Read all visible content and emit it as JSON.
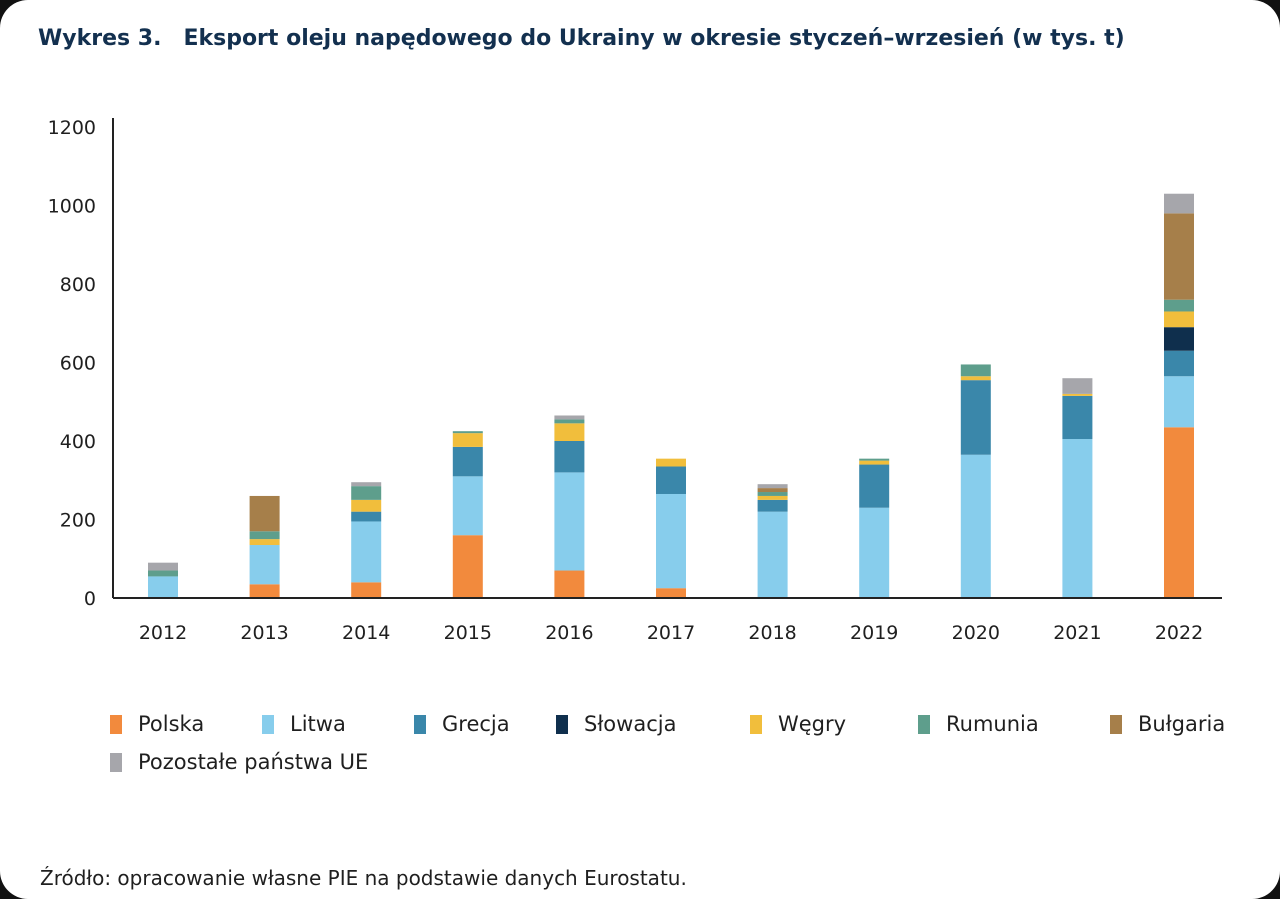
{
  "header": {
    "title_number": "Wykres 3.",
    "title_text": "Eksport oleju napędowego do Ukrainy w okresie styczeń–wrzesień (w tys. t)"
  },
  "source": "Źródło: opracowanie własne PIE na podstawie danych Eurostatu.",
  "chart_data": {
    "type": "bar",
    "stacked": true,
    "title": "Eksport oleju napędowego do Ukrainy w okresie styczeń–wrzesień (w tys. t)",
    "xlabel": "",
    "ylabel": "",
    "ylim": [
      0,
      1200
    ],
    "yticks": [
      0,
      200,
      400,
      600,
      800,
      1000,
      1200
    ],
    "grid": false,
    "legend_position": "bottom",
    "categories": [
      "2012",
      "2013",
      "2014",
      "2015",
      "2016",
      "2017",
      "2018",
      "2019",
      "2020",
      "2021",
      "2022"
    ],
    "series": [
      {
        "name": "Polska",
        "color": "#f28a3d",
        "values": [
          0,
          35,
          40,
          160,
          70,
          25,
          0,
          0,
          0,
          0,
          435
        ]
      },
      {
        "name": "Litwa",
        "color": "#87cdec",
        "values": [
          55,
          100,
          155,
          150,
          250,
          240,
          220,
          230,
          365,
          405,
          130
        ]
      },
      {
        "name": "Grecja",
        "color": "#3a87aa",
        "values": [
          0,
          0,
          25,
          75,
          80,
          70,
          30,
          110,
          190,
          110,
          65
        ]
      },
      {
        "name": "Słowacja",
        "color": "#0f2f4d",
        "values": [
          0,
          0,
          0,
          0,
          0,
          0,
          0,
          0,
          0,
          0,
          60
        ]
      },
      {
        "name": "Węgry",
        "color": "#f1be3c",
        "values": [
          0,
          15,
          30,
          35,
          45,
          20,
          10,
          10,
          10,
          5,
          40
        ]
      },
      {
        "name": "Rumunia",
        "color": "#5e9e8c",
        "values": [
          15,
          20,
          35,
          5,
          10,
          0,
          10,
          5,
          30,
          0,
          30
        ]
      },
      {
        "name": "Bułgaria",
        "color": "#a67f4a",
        "values": [
          0,
          90,
          0,
          0,
          0,
          0,
          10,
          0,
          0,
          0,
          220
        ]
      },
      {
        "name": "Pozostałe państwa UE",
        "color": "#a6a6ab",
        "values": [
          20,
          0,
          10,
          0,
          10,
          0,
          10,
          0,
          0,
          40,
          50
        ]
      }
    ]
  }
}
